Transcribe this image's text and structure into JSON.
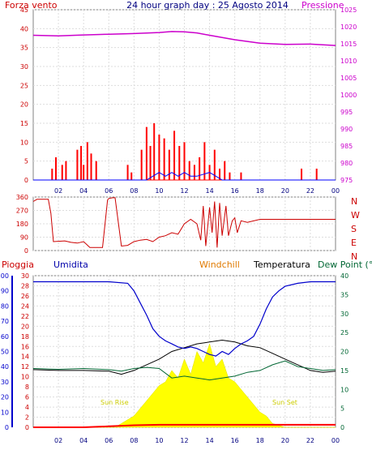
{
  "chart_data": [
    {
      "type": "line",
      "title": "24 hour graph day : 25 Agosto 2014",
      "left_label": "Forza vento",
      "right_label": "Pressione",
      "left_ylim": [
        0,
        45
      ],
      "left_ticks": [
        "0",
        "5",
        "10",
        "15",
        "20",
        "25",
        "30",
        "35",
        "40",
        "45"
      ],
      "right_ylim": [
        975,
        1025
      ],
      "right_ticks": [
        "975",
        "980",
        "985",
        "990",
        "995",
        "1000",
        "1005",
        "1010",
        "1015",
        "1020",
        "1025"
      ],
      "x_ticks": [
        "02",
        "04",
        "06",
        "08",
        "10",
        "12",
        "14",
        "16",
        "18",
        "20",
        "22",
        "00"
      ],
      "series": [
        {
          "color": "#ff0000",
          "values_note": "",
          "x": [
            0.0,
            1.5,
            1.8,
            2.3,
            2.6,
            3.0,
            3.5,
            3.8,
            4.0,
            4.3,
            4.6,
            5.0,
            5.3,
            6.5,
            7.5,
            7.8,
            8.2,
            8.6,
            9.0,
            9.3,
            9.6,
            10.0,
            10.4,
            10.8,
            11.2,
            11.6,
            12.0,
            12.4,
            12.8,
            13.2,
            13.6,
            14.0,
            14.4,
            14.8,
            15.2,
            15.6,
            16.0,
            16.5,
            17.0,
            19.0,
            21.3,
            22.5,
            24.0
          ],
          "y": [
            0,
            3,
            6,
            4,
            5,
            0,
            8,
            9,
            4,
            10,
            7,
            5,
            0,
            0,
            4,
            2,
            0,
            8,
            14,
            9,
            15,
            12,
            11,
            8,
            13,
            9,
            10,
            5,
            4,
            6,
            10,
            4,
            8,
            3,
            5,
            2,
            0,
            2,
            0,
            0,
            3,
            3,
            0
          ]
        },
        {
          "color": "#0000ff",
          "x": [
            0,
            9,
            9.5,
            10,
            10.5,
            11,
            11.5,
            12,
            12.5,
            13,
            14,
            14.5,
            15,
            24
          ],
          "y": [
            0,
            0,
            1,
            2,
            1,
            2,
            1,
            2,
            1,
            1,
            2,
            1,
            0,
            0
          ]
        }
      ],
      "pressure": {
        "color": "#cc00cc",
        "x": [
          0,
          2,
          4,
          6,
          8,
          10,
          11,
          12,
          13,
          14,
          16,
          18,
          20,
          22,
          24
        ],
        "y": [
          1017.5,
          1017.3,
          1017.6,
          1017.8,
          1018.0,
          1018.3,
          1018.6,
          1018.5,
          1018.2,
          1017.5,
          1016.2,
          1015.2,
          1014.8,
          1014.9,
          1014.5
        ]
      }
    },
    {
      "type": "line",
      "title": "",
      "ylim": [
        0,
        360
      ],
      "left_ticks": [
        "0",
        "90",
        "180",
        "270",
        "360"
      ],
      "right_ticks": [
        "N",
        "W",
        "S",
        "E",
        "N"
      ],
      "x_ticks": [],
      "series": [
        {
          "color": "#cc0000",
          "x": [
            0,
            0.3,
            1.2,
            1.4,
            1.6,
            2.5,
            3.0,
            3.5,
            4.0,
            4.5,
            5.5,
            5.9,
            6.0,
            6.3,
            6.5,
            7.0,
            7.5,
            8.0,
            8.5,
            9.0,
            9.5,
            10.0,
            10.5,
            11.0,
            11.5,
            12.0,
            12.5,
            13.0,
            13.3,
            13.5,
            13.7,
            14.0,
            14.2,
            14.4,
            14.6,
            14.8,
            15.0,
            15.3,
            15.5,
            15.8,
            16.0,
            16.2,
            16.5,
            17.0,
            18.0,
            20.0,
            22.0,
            24.0
          ],
          "y": [
            330,
            345,
            345,
            250,
            60,
            65,
            55,
            50,
            60,
            20,
            20,
            340,
            350,
            355,
            355,
            30,
            35,
            60,
            70,
            75,
            60,
            90,
            100,
            120,
            110,
            180,
            210,
            180,
            70,
            300,
            30,
            290,
            120,
            330,
            20,
            320,
            100,
            300,
            100,
            200,
            220,
            120,
            200,
            190,
            210,
            210,
            210,
            210
          ]
        }
      ]
    },
    {
      "type": "line",
      "title": "",
      "legend": [
        "Pioggia",
        "Umidita",
        "Windchill",
        "Temperatura",
        "Dew Point (°C"
      ],
      "far_left_ticks": [
        "0",
        "10",
        "20",
        "30",
        "40",
        "50",
        "60",
        "70",
        "80",
        "90",
        "100"
      ],
      "left_ticks": [
        "0",
        "2",
        "4",
        "6",
        "8",
        "10",
        "12",
        "14",
        "16",
        "18",
        "20",
        "22",
        "24",
        "26",
        "28",
        "30"
      ],
      "right_ticks": [
        "0",
        "5",
        "10",
        "15",
        "20",
        "25",
        "30",
        "35",
        "40"
      ],
      "x_ticks": [
        "02",
        "04",
        "06",
        "08",
        "10",
        "12",
        "14",
        "16",
        "18",
        "20",
        "22",
        "00"
      ],
      "annotations": [
        "Sun Rise",
        "Sun Set"
      ],
      "humidity": {
        "color": "#0000cc",
        "x": [
          0,
          2,
          4,
          6,
          7.5,
          8,
          8.5,
          9,
          9.5,
          10,
          10.5,
          11,
          11.5,
          12,
          12.5,
          13,
          13.5,
          14,
          14.5,
          15,
          15.5,
          16,
          16.5,
          17,
          17.5,
          18,
          18.5,
          19,
          19.5,
          20,
          21,
          22,
          23,
          24
        ],
        "y": [
          96,
          96,
          96,
          96,
          95,
          90,
          82,
          74,
          65,
          60,
          57,
          55,
          53,
          52,
          53,
          52,
          50,
          48,
          47,
          50,
          48,
          52,
          55,
          57,
          60,
          68,
          78,
          86,
          90,
          93,
          95,
          96,
          96,
          96
        ]
      },
      "temperature": {
        "color": "#000000",
        "x": [
          0,
          2,
          4,
          6,
          7,
          8,
          9,
          10,
          11,
          12,
          13,
          14,
          15,
          16,
          17,
          18,
          19,
          20,
          21,
          22,
          23,
          24
        ],
        "y": [
          15.2,
          15.0,
          15.0,
          14.8,
          14.0,
          15.0,
          16.5,
          18.0,
          20.0,
          21.0,
          22.0,
          22.5,
          23.0,
          22.5,
          21.5,
          21.0,
          19.5,
          18.0,
          16.5,
          15.0,
          14.5,
          14.8
        ]
      },
      "dewpoint": {
        "color": "#006633",
        "x": [
          0,
          2,
          4,
          6,
          7,
          8,
          9,
          10,
          11,
          12,
          13,
          14,
          15,
          16,
          17,
          18,
          19,
          20,
          21,
          22,
          23,
          24
        ],
        "y": [
          15.5,
          15.3,
          15.5,
          15.2,
          14.8,
          15.5,
          15.8,
          15.5,
          13.0,
          13.5,
          13.0,
          12.5,
          13.0,
          13.5,
          14.5,
          15.0,
          16.5,
          17.5,
          16.0,
          15.5,
          15.0,
          15.2
        ]
      },
      "solar": {
        "color": "#ffff00",
        "x": [
          0,
          6.5,
          7,
          8,
          9,
          10,
          10.5,
          11,
          11.5,
          12,
          12.5,
          13,
          13.5,
          14,
          14.5,
          15,
          15.5,
          16,
          17,
          18,
          18.5,
          19,
          20,
          24
        ],
        "y": [
          0,
          0,
          1,
          3,
          7,
          11,
          12,
          15,
          13,
          18,
          14,
          20,
          17,
          22,
          16,
          18,
          13,
          12,
          8,
          4,
          3,
          1,
          0,
          0
        ]
      },
      "rain": {
        "color": "#ff0000",
        "x": [
          0,
          2,
          4,
          6,
          8,
          10,
          12,
          14,
          16,
          18,
          20,
          22,
          24
        ],
        "y": [
          0,
          0,
          0,
          0.2,
          0.4,
          0.5,
          0.5,
          0.5,
          0.5,
          0.5,
          0.5,
          0.5,
          0.5
        ]
      }
    }
  ]
}
